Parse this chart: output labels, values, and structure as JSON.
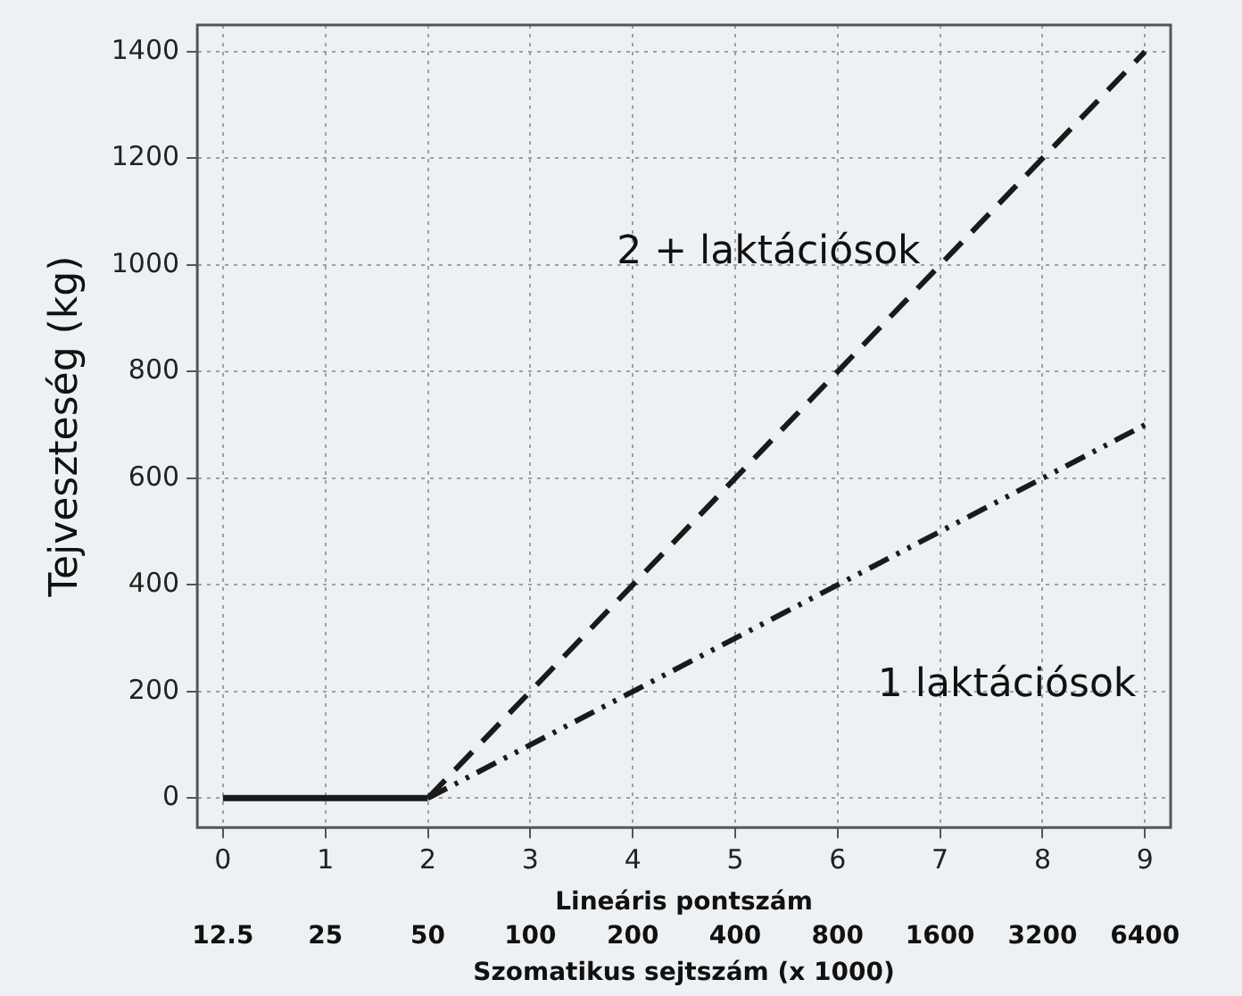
{
  "chart_data": {
    "type": "line",
    "xlabel": "Lineáris pontszám",
    "ylabel": "Tejveszteség (kg)",
    "x2label": "Szomatikus sejtszám (x 1000)",
    "xlim": [
      -0.25,
      9.25
    ],
    "xticks": [
      0,
      1,
      2,
      3,
      4,
      5,
      6,
      7,
      8,
      9
    ],
    "x2lim": [
      10.51,
      7611
    ],
    "x2ticks": [
      12.5,
      25,
      50,
      100,
      200,
      400,
      800,
      1600,
      3200,
      6400
    ],
    "log": "x2",
    "ylim": [
      -55,
      1450
    ],
    "yticks": [
      0,
      200,
      400,
      600,
      800,
      1000,
      1200,
      1400
    ],
    "grid": true,
    "legend": false,
    "marker": "none",
    "series": [
      {
        "x": [
          0,
          2
        ],
        "values": [
          0,
          0
        ],
        "color": "#1a1a1a",
        "line_style": "solid"
      },
      {
        "name": "2 + laktációsok",
        "x": [
          2,
          3,
          4,
          5,
          6,
          7,
          8,
          9
        ],
        "values": [
          0,
          200,
          400,
          600,
          800,
          1000,
          1200,
          1400
        ],
        "color": "#1a1a1a",
        "line_style": "dashed"
      },
      {
        "name": "1 laktációsok",
        "x": [
          2,
          3,
          4,
          5,
          6,
          7,
          8,
          9
        ],
        "values": [
          0,
          100,
          200,
          300,
          400,
          500,
          600,
          700
        ],
        "color": "#1a1a1a",
        "line_style": "dotted"
      }
    ]
  }
}
